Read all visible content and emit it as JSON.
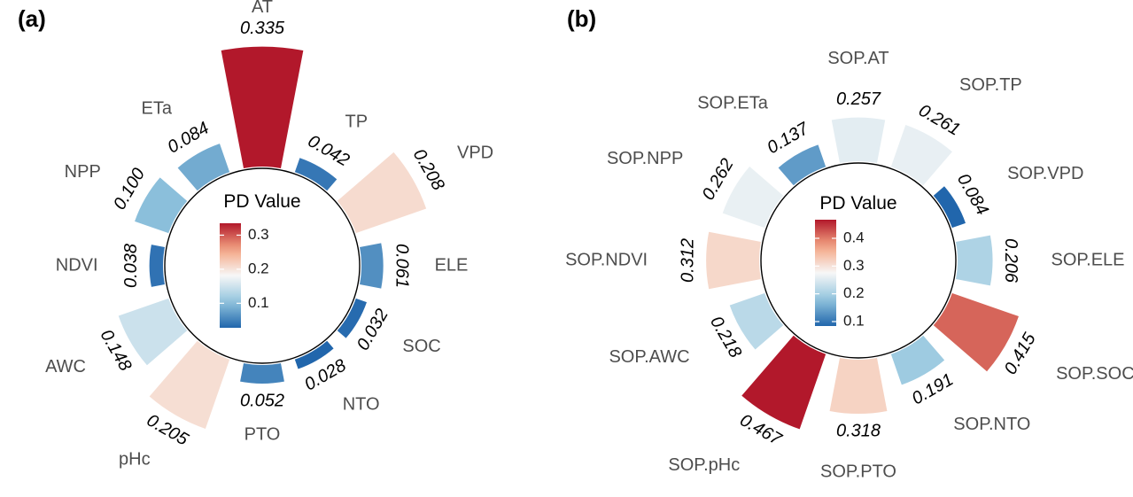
{
  "chart_data": [
    {
      "type": "radial-bar",
      "panel_label": "(a)",
      "legend_title": "PD Value",
      "legend_ticks": [
        0.1,
        0.2,
        0.3
      ],
      "legend_range": [
        0.028,
        0.335
      ],
      "categories": [
        "AT",
        "TP",
        "VPD",
        "ELE",
        "SOC",
        "NTO",
        "PTO",
        "pHc",
        "AWC",
        "NDVI",
        "NPP",
        "ETa"
      ],
      "values": [
        0.335,
        0.042,
        0.208,
        0.061,
        0.032,
        0.028,
        0.052,
        0.205,
        0.148,
        0.038,
        0.1,
        0.084
      ],
      "value_labels": [
        "0.335",
        "0.042",
        "0.208",
        "0.061",
        "0.032",
        "0.028",
        "0.052",
        "0.205",
        "0.148",
        "0.038",
        "0.100",
        "0.084"
      ]
    },
    {
      "type": "radial-bar",
      "panel_label": "(b)",
      "legend_title": "PD Value",
      "legend_ticks": [
        0.1,
        0.2,
        0.3,
        0.4
      ],
      "legend_range": [
        0.084,
        0.467
      ],
      "categories": [
        "SOP.AT",
        "SOP.TP",
        "SOP.VPD",
        "SOP.ELE",
        "SOP.SOC",
        "SOP.NTO",
        "SOP.PTO",
        "SOP.pHc",
        "SOP.AWC",
        "SOP.NDVI",
        "SOP.NPP",
        "SOP.ETa"
      ],
      "values": [
        0.257,
        0.261,
        0.084,
        0.206,
        0.415,
        0.191,
        0.318,
        0.467,
        0.218,
        0.312,
        0.262,
        0.137
      ],
      "value_labels": [
        "0.257",
        "0.261",
        "0.084",
        "0.206",
        "0.415",
        "0.191",
        "0.318",
        "0.467",
        "0.218",
        "0.312",
        "0.262",
        "0.137"
      ]
    }
  ],
  "colors": {
    "low": "#2166ac",
    "mid_low": "#92c5de",
    "mid": "#f7f7f7",
    "mid_high": "#f4a582",
    "high": "#b2182b"
  }
}
